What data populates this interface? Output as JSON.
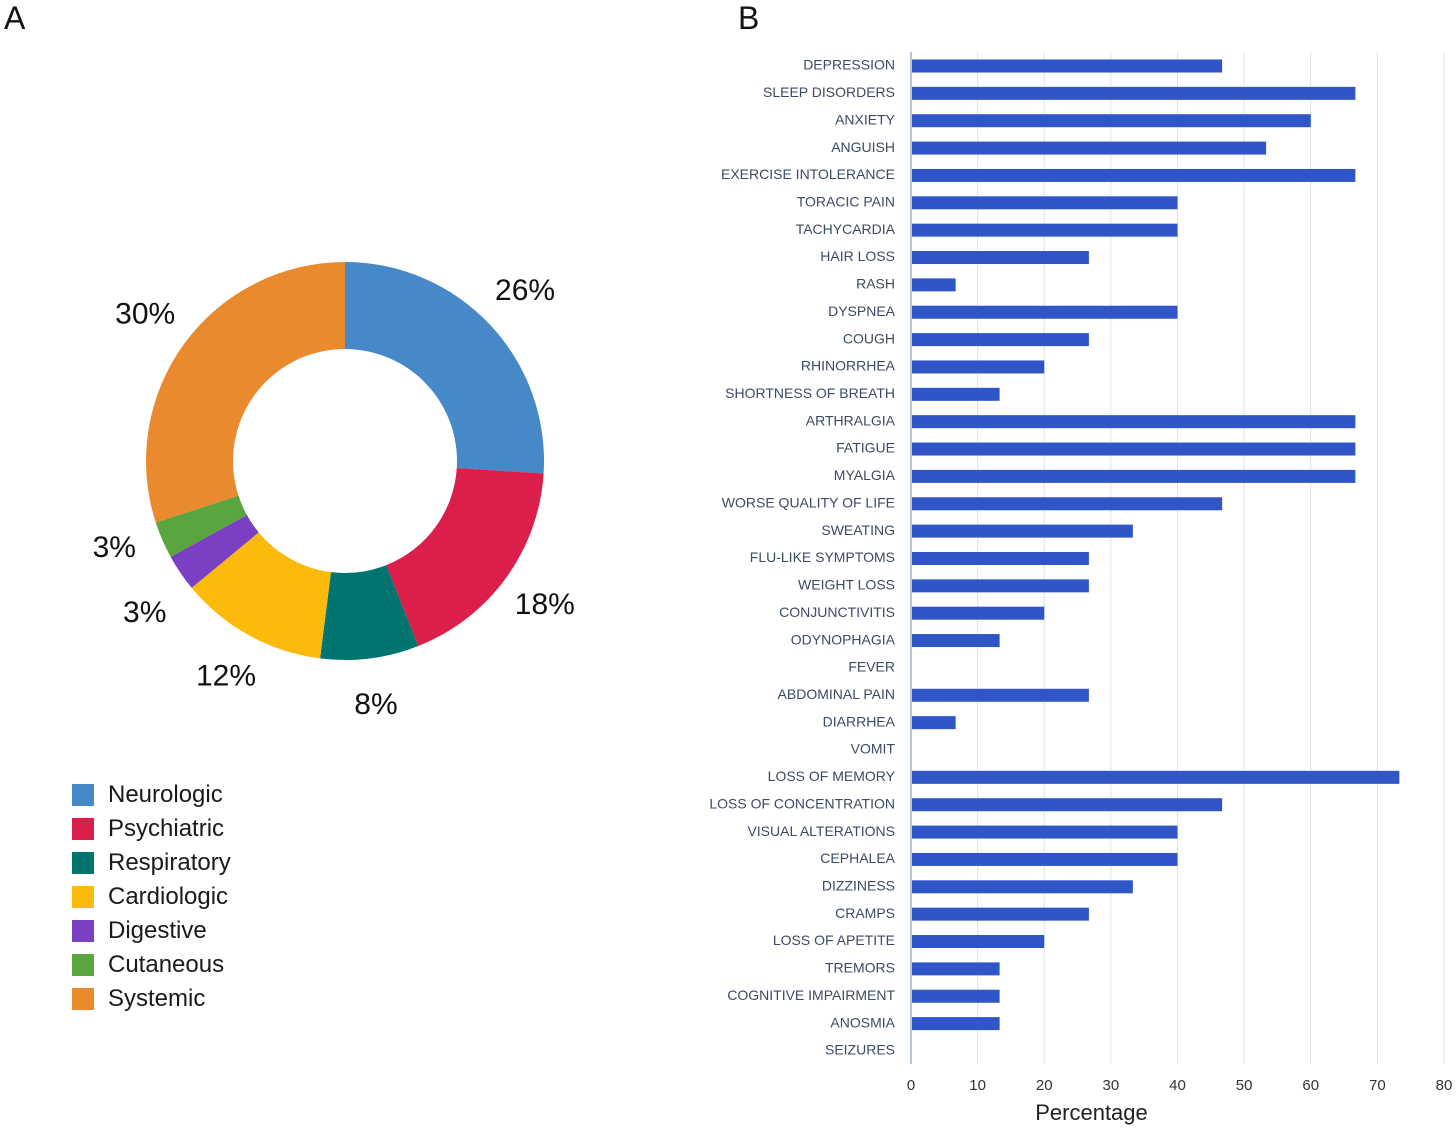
{
  "panels": {
    "a": "A",
    "b": "B"
  },
  "chart_data": [
    {
      "type": "pie",
      "donut": true,
      "categories": [
        "Neurologic",
        "Psychiatric",
        "Respiratory",
        "Cardiologic",
        "Digestive",
        "Cutaneous",
        "Systemic"
      ],
      "values": [
        26,
        18,
        8,
        12,
        3,
        3,
        30
      ],
      "labels": [
        "26%",
        "18%",
        "8%",
        "12%",
        "3%",
        "3%",
        "30%"
      ],
      "colors": [
        "#4688C8",
        "#DC1E4A",
        "#00756F",
        "#FBBA0C",
        "#7A3FC2",
        "#5AA53E",
        "#E98A2E"
      ],
      "legend": "bottom-left"
    },
    {
      "type": "bar",
      "orientation": "horizontal",
      "categories": [
        "DEPRESSION",
        "SLEEP DISORDERS",
        "ANXIETY",
        "ANGUISH",
        "EXERCISE INTOLERANCE",
        "TORACIC PAIN",
        "TACHYCARDIA",
        "HAIR LOSS",
        "RASH",
        "DYSPNEA",
        "COUGH",
        "RHINORRHEA",
        "SHORTNESS OF BREATH",
        "ARTHRALGIA",
        "FATIGUE",
        "MYALGIA",
        "WORSE QUALITY OF LIFE",
        "SWEATING",
        "FLU-LIKE SYMPTOMS",
        "WEIGHT LOSS",
        "CONJUNCTIVITIS",
        "ODYNOPHAGIA",
        "FEVER",
        "ABDOMINAL PAIN",
        "DIARRHEA",
        "VOMIT",
        "LOSS OF MEMORY",
        "LOSS OF CONCENTRATION",
        "VISUAL ALTERATIONS",
        "CEPHALEA",
        "DIZZINESS",
        "CRAMPS",
        "LOSS OF APETITE",
        "TREMORS",
        "COGNITIVE IMPAIRMENT",
        "ANOSMIA",
        "SEIZURES"
      ],
      "values": [
        46.7,
        66.7,
        60,
        53.3,
        66.7,
        40,
        40,
        26.7,
        6.7,
        40,
        26.7,
        20,
        13.3,
        66.7,
        66.7,
        66.7,
        46.7,
        33.3,
        26.7,
        26.7,
        20,
        13.3,
        0,
        26.7,
        6.7,
        0,
        73.3,
        46.7,
        40,
        40,
        33.3,
        26.7,
        20,
        13.3,
        13.3,
        13.3,
        0
      ],
      "color": "#2F55C6",
      "xlabel": "Percentage",
      "ylabel": "",
      "xlim": [
        0,
        80
      ],
      "xticks": [
        0,
        10,
        20,
        30,
        40,
        50,
        60,
        70,
        80
      ],
      "grid": true
    }
  ]
}
